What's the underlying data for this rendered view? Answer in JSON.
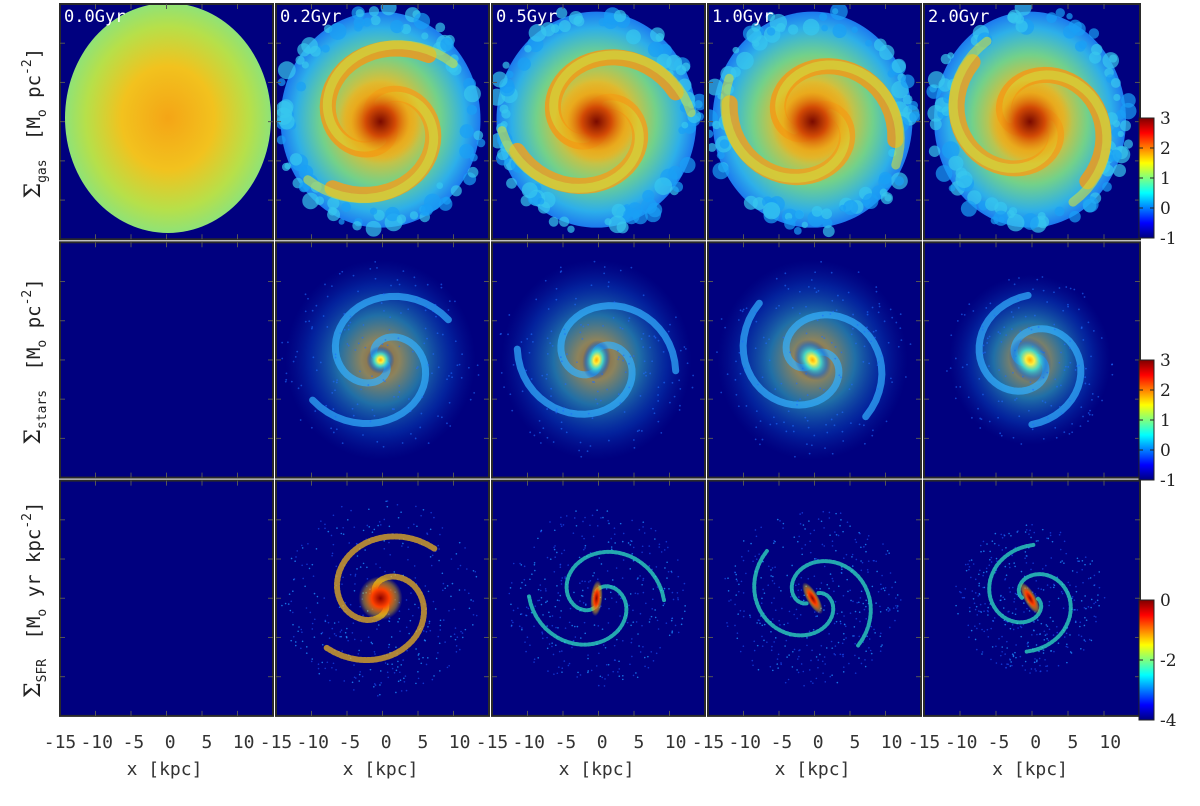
{
  "chart_data": {
    "type": "heatmap",
    "description_free": true,
    "panel_times": [
      "0.0Gyr",
      "0.2Gyr",
      "0.5Gyr",
      "1.0Gyr",
      "2.0Gyr"
    ],
    "x_axis": {
      "label": "x [kpc]",
      "range": [
        -15,
        14
      ],
      "tick_labels": [
        "-15",
        "-10",
        "-5",
        "0",
        "5",
        "10"
      ]
    },
    "rows": [
      {
        "quantity": "gas",
        "ylabel_symbol": "Σ",
        "ylabel_sub": "gas",
        "ylabel_units": "[M",
        "ylabel_units_sub": "o",
        "ylabel_units_rest": "pc",
        "ylabel_units_exp": "-2",
        "ylabel_close": "]",
        "colorbar": {
          "range": [
            -1,
            3
          ],
          "tick_labels": [
            "3",
            "2",
            "1",
            "0",
            "-1"
          ]
        }
      },
      {
        "quantity": "stars",
        "ylabel_symbol": "Σ",
        "ylabel_sub": "stars",
        "ylabel_units": "[M",
        "ylabel_units_sub": "o",
        "ylabel_units_rest": "pc",
        "ylabel_units_exp": "-2",
        "ylabel_close": "]",
        "colorbar": {
          "range": [
            -1,
            3
          ],
          "tick_labels": [
            "3",
            "2",
            "1",
            "0",
            "-1"
          ]
        }
      },
      {
        "quantity": "SFR",
        "ylabel_symbol": "Σ",
        "ylabel_sub": "SFR",
        "ylabel_units": "[M",
        "ylabel_units_sub": "o",
        "ylabel_units_rest": "yr kpc",
        "ylabel_units_exp": "-2",
        "ylabel_close": "]",
        "colorbar": {
          "range": [
            -4,
            0
          ],
          "tick_labels": [
            "0",
            "-2",
            "-4"
          ]
        }
      }
    ],
    "colormap": "jet",
    "colormap_stops": [
      "#00007f",
      "#0000ff",
      "#007fff",
      "#00ffff",
      "#7fff7f",
      "#ffff00",
      "#ff7f00",
      "#ff0000",
      "#7f0000"
    ],
    "background_color": "#00007f",
    "frame_color": "#2a2a2a"
  }
}
